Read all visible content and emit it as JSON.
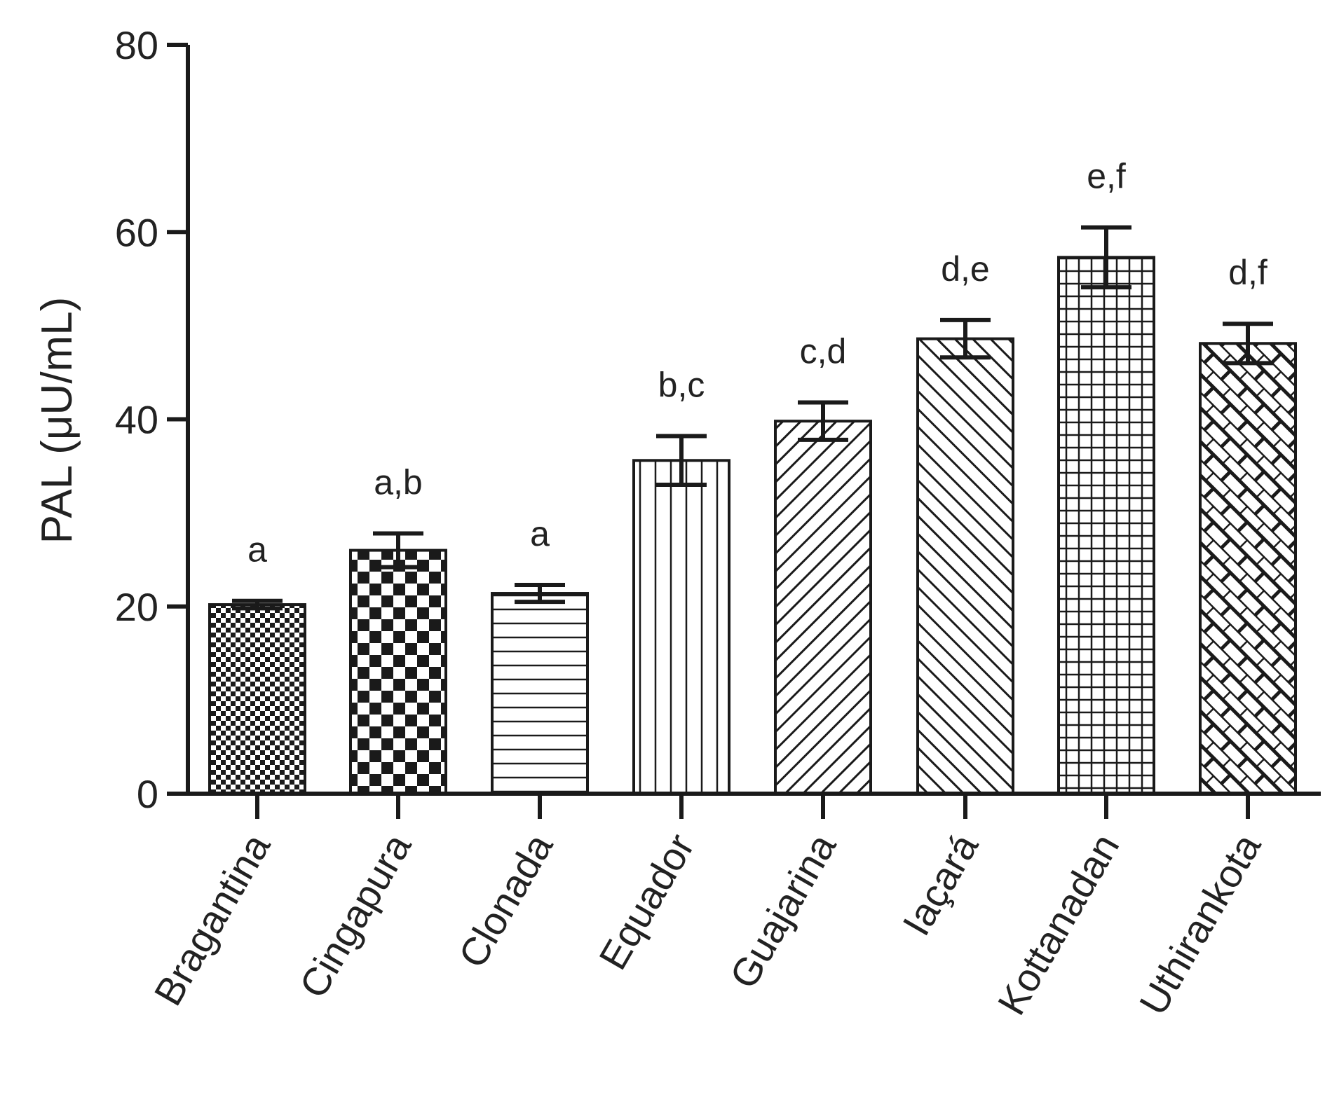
{
  "chart_data": {
    "type": "bar",
    "title": "",
    "xlabel": "",
    "ylabel": "PAL (μU/mL)",
    "ylim": [
      0,
      80
    ],
    "yticks": [
      0,
      20,
      40,
      60,
      80
    ],
    "grid": false,
    "legend": "none",
    "categories": [
      "Bragantina",
      "Cingapura",
      "Clonada",
      "Equador",
      "Guajarina",
      "Iaçará",
      "Kottanadan",
      "Uthirankota"
    ],
    "values": [
      20.2,
      26.0,
      21.4,
      35.6,
      39.8,
      48.6,
      57.3,
      48.1
    ],
    "errors": [
      0.4,
      1.8,
      0.9,
      2.6,
      2.0,
      2.0,
      3.2,
      2.1
    ],
    "significance": [
      "a",
      "a,b",
      "a",
      "b,c",
      "c,d",
      "d,e",
      "e,f",
      "d,f"
    ],
    "patterns": [
      "fine-checker",
      "checkerboard",
      "horizontal-lines",
      "vertical-lines",
      "diagonal-up",
      "diagonal-down",
      "grid",
      "brick-crosshatch"
    ],
    "colors": {
      "ink": "#1a1a1a",
      "background": "#ffffff"
    }
  }
}
